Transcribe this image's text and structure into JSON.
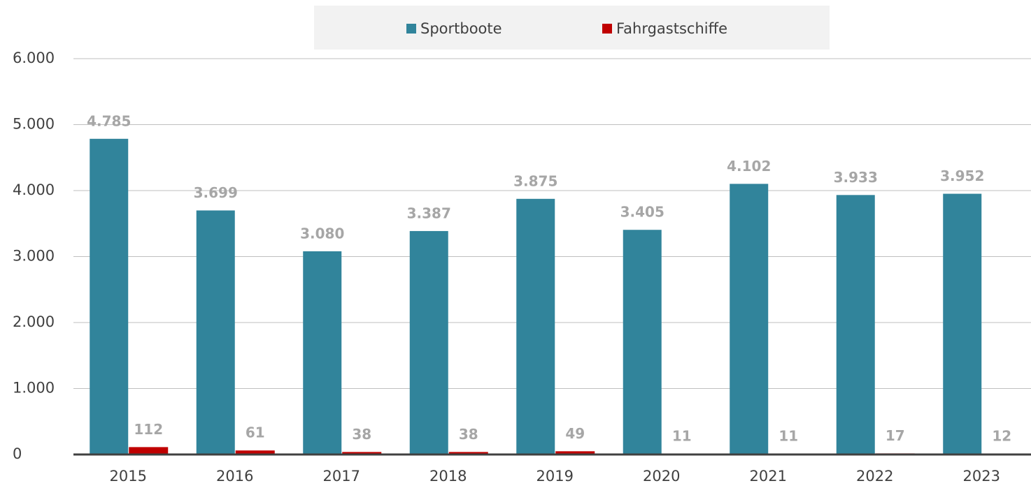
{
  "chart_data": {
    "type": "bar",
    "categories": [
      "2015",
      "2016",
      "2017",
      "2018",
      "2019",
      "2020",
      "2021",
      "2022",
      "2023"
    ],
    "series": [
      {
        "name": "Sportboote",
        "color": "#31849b",
        "values": [
          4785,
          3699,
          3080,
          3387,
          3875,
          3405,
          4102,
          3933,
          3952
        ],
        "value_labels": [
          "4.785",
          "3.699",
          "3.080",
          "3.387",
          "3.875",
          "3.405",
          "4.102",
          "3.933",
          "3.952"
        ]
      },
      {
        "name": "Fahrgastschiffe",
        "color": "#c00000",
        "values": [
          112,
          61,
          38,
          38,
          49,
          11,
          11,
          17,
          12
        ]
      }
    ],
    "ylim": [
      0,
      6000
    ],
    "yticks": [
      0,
      {
        "value": 1000,
        "label": "1.000"
      },
      {
        "value": 2000,
        "label": "2.000"
      },
      {
        "value": 3000,
        "label": "3.000"
      },
      {
        "value": 4000,
        "label": "4.000"
      },
      {
        "value": 5000,
        "label": "5.000"
      },
      {
        "value": 6000,
        "label": "6.000"
      }
    ],
    "grid": true
  }
}
